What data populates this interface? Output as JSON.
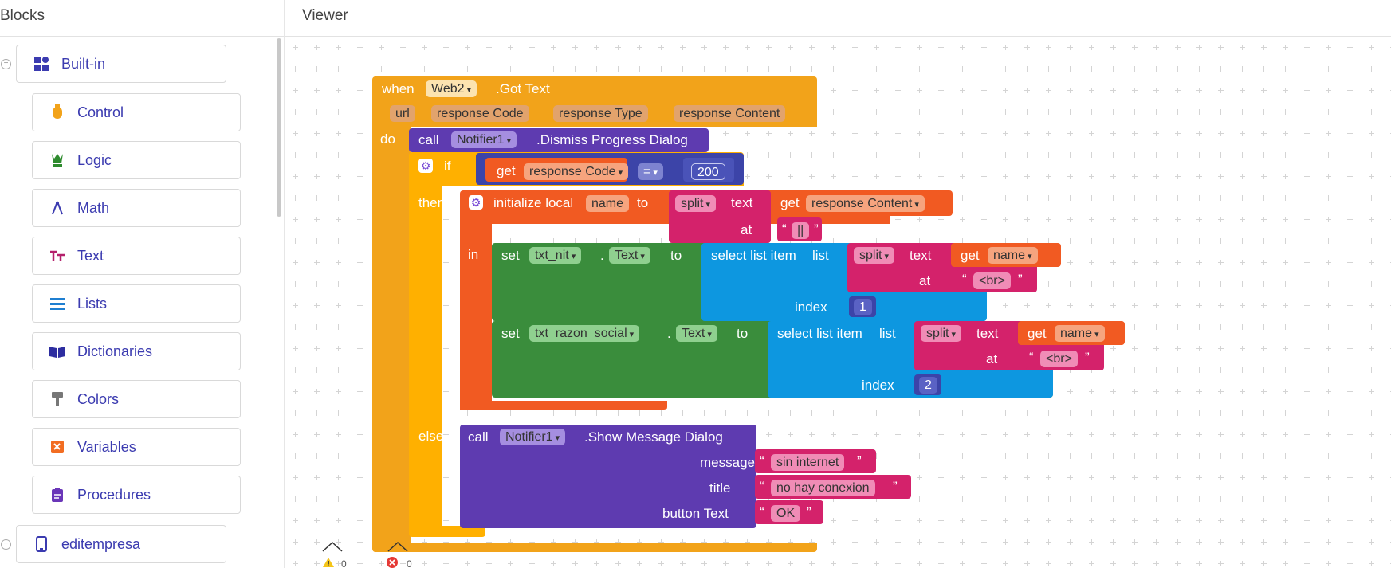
{
  "blocks_panel": {
    "title": "Blocks",
    "builtin_label": "Built-in",
    "drawers": [
      {
        "label": "Control",
        "icon": "control-icon",
        "color": "#f2a31a"
      },
      {
        "label": "Logic",
        "icon": "logic-icon",
        "color": "#2e8b2e"
      },
      {
        "label": "Math",
        "icon": "math-icon",
        "color": "#3b3bb0"
      },
      {
        "label": "Text",
        "icon": "text-icon",
        "color": "#b4206b"
      },
      {
        "label": "Lists",
        "icon": "lists-icon",
        "color": "#1f7fd1"
      },
      {
        "label": "Dictionaries",
        "icon": "dictionaries-icon",
        "color": "#2d2da0"
      },
      {
        "label": "Colors",
        "icon": "colors-icon",
        "color": "#777777"
      },
      {
        "label": "Variables",
        "icon": "variables-icon",
        "color": "#f26d22"
      },
      {
        "label": "Procedures",
        "icon": "procedures-icon",
        "color": "#6a36b8"
      }
    ],
    "screen_label": "editempresa"
  },
  "viewer": {
    "title": "Viewer",
    "warnings_count": "0",
    "errors_count": "0"
  },
  "event": {
    "when": "when",
    "component": "Web2",
    "event_name": ".Got Text",
    "params": [
      "url",
      "response Code",
      "response Type",
      "response Content"
    ],
    "do": "do"
  },
  "dismiss": {
    "call": "call",
    "component": "Notifier1",
    "method": ".Dismiss Progress Dialog"
  },
  "if_block": {
    "if": "if",
    "then": "then",
    "else": "else",
    "get": "get",
    "var": "response Code",
    "op": "=",
    "number": "200"
  },
  "local": {
    "initialize": "initialize local",
    "name": "name",
    "to": "to",
    "split": "split",
    "text": "text",
    "get": "get",
    "source": "response Content",
    "at": "at",
    "separator": "||",
    "in": "in"
  },
  "set1": {
    "set": "set",
    "component": "txt_nit",
    "dot": ".",
    "property": "Text",
    "to": "to",
    "select": "select list item",
    "list": "list",
    "split": "split",
    "text": "text",
    "get": "get",
    "var": "name",
    "at": "at",
    "separator": "<br>",
    "index": "index",
    "index_value": "1"
  },
  "set2": {
    "set": "set",
    "component": "txt_razon_social",
    "dot": ".",
    "property": "Text",
    "to": "to",
    "select": "select list item",
    "list": "list",
    "split": "split",
    "text": "text",
    "get": "get",
    "var": "name",
    "at": "at",
    "separator": "<br>",
    "index": "index",
    "index_value": "2"
  },
  "show": {
    "call": "call",
    "component": "Notifier1",
    "method": ".Show Message Dialog",
    "message_label": "message",
    "message_value": "sin internet",
    "title_label": "title",
    "title_value": "no hay conexion",
    "button_label": "button Text",
    "button_value": "OK"
  }
}
